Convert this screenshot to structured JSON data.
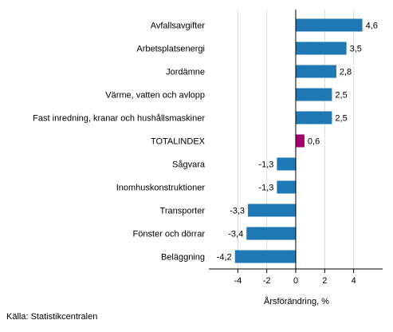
{
  "chart_data": {
    "type": "bar",
    "orientation": "horizontal",
    "categories": [
      "Avfallsavgifter",
      "Arbetsplatsenergi",
      "Jordämne",
      "Värme, vatten och avlopp",
      "Fast inredning, kranar och hushållsmaskiner",
      "TOTALINDEX",
      "Sågvara",
      "Inomhuskonstruktioner",
      "Transporter",
      "Fönster och dörrar",
      "Beläggning"
    ],
    "values": [
      4.6,
      3.5,
      2.8,
      2.5,
      2.5,
      0.6,
      -1.3,
      -1.3,
      -3.3,
      -3.4,
      -4.2
    ],
    "value_labels": [
      "4,6",
      "3,5",
      "2,8",
      "2,5",
      "2,5",
      "0,6",
      "-1,3",
      "-1,3",
      "-3,3",
      "-3,4",
      "-4,2"
    ],
    "highlight_category": "TOTALINDEX",
    "xlabel": "Årsförändring, %",
    "xlim": [
      -6,
      6
    ],
    "xticks": [
      -4,
      -2,
      0,
      2,
      4
    ],
    "xtick_labels": [
      "-4",
      "-2",
      "0",
      "2",
      "4"
    ],
    "grid": "vertical",
    "colors": {
      "bar": "#1f77b4",
      "highlight": "#a3006e",
      "grid": "#dcdcdc",
      "axis": "#000000"
    }
  },
  "source": "Källa: Statistikcentralen"
}
